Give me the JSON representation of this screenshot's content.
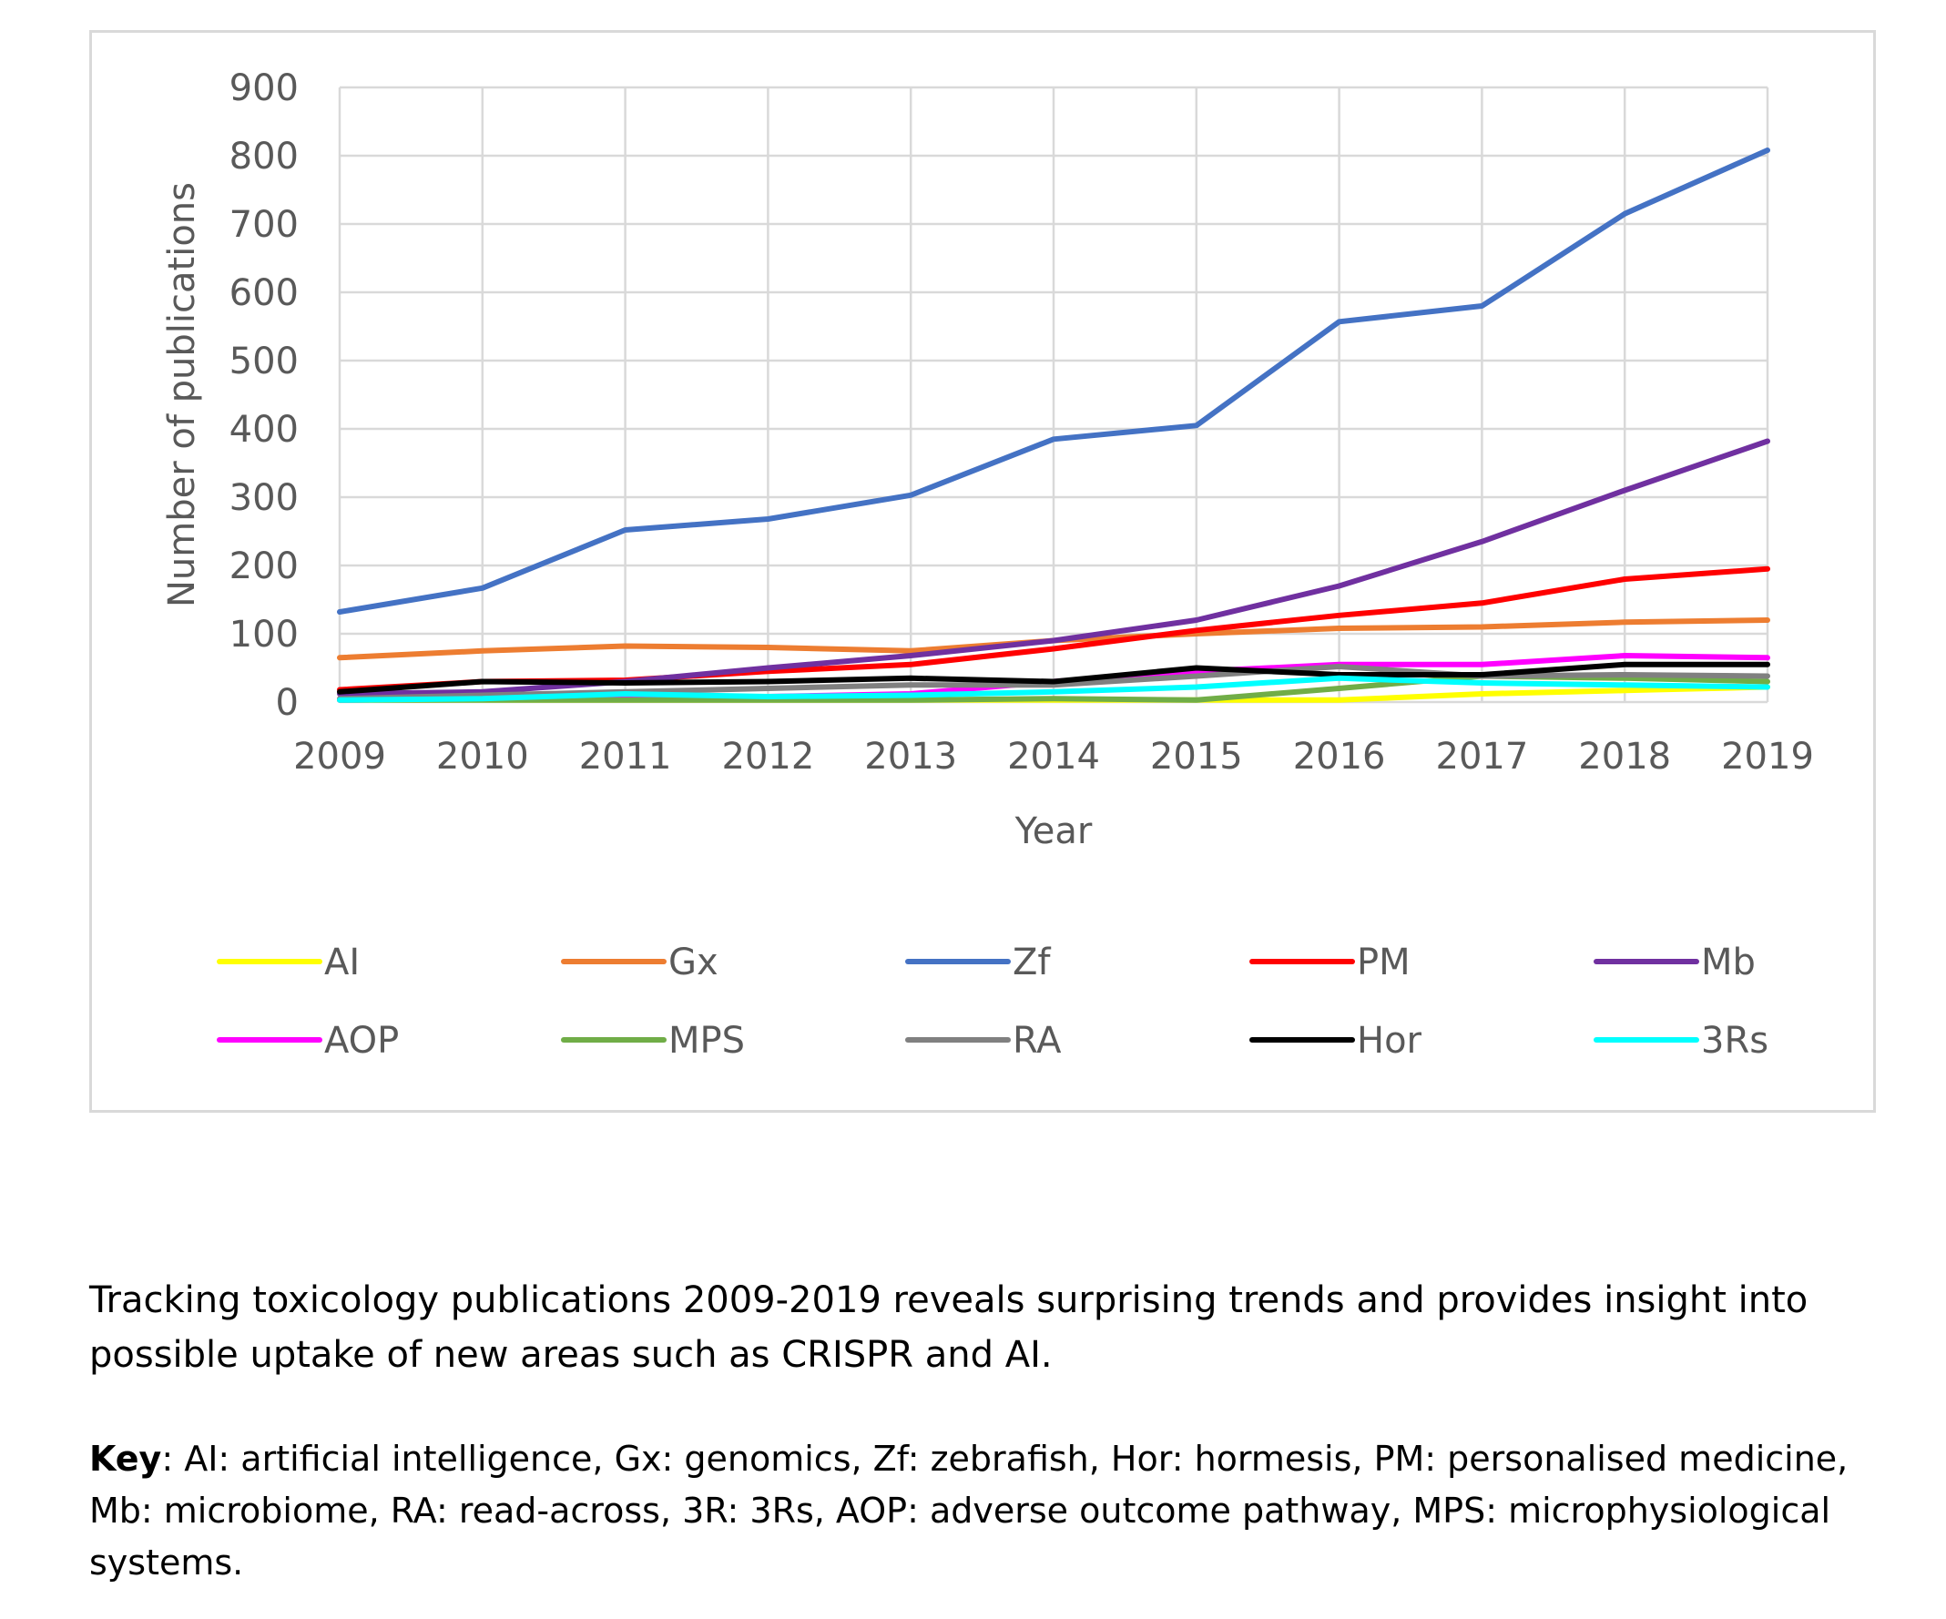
{
  "chart_data": {
    "type": "line",
    "x": [
      2009,
      2010,
      2011,
      2012,
      2013,
      2014,
      2015,
      2016,
      2017,
      2018,
      2019
    ],
    "xlabel": "Year",
    "ylabel": "Number of publications",
    "ylim": [
      0,
      900
    ],
    "yticks": [
      0,
      100,
      200,
      300,
      400,
      500,
      600,
      700,
      800,
      900
    ],
    "grid": true,
    "legend_position": "bottom",
    "series": [
      {
        "name": "AI",
        "color": "#ffff00",
        "values": [
          3,
          3,
          3,
          3,
          3,
          3,
          3,
          3,
          12,
          17,
          22
        ]
      },
      {
        "name": "Gx",
        "color": "#ed7d31",
        "values": [
          65,
          75,
          82,
          80,
          75,
          90,
          100,
          108,
          110,
          117,
          120
        ]
      },
      {
        "name": "Zf",
        "color": "#4472c4",
        "values": [
          132,
          167,
          252,
          268,
          303,
          385,
          405,
          557,
          580,
          715,
          808
        ]
      },
      {
        "name": "PM",
        "color": "#ff0000",
        "values": [
          18,
          30,
          32,
          45,
          55,
          78,
          105,
          127,
          145,
          180,
          195
        ]
      },
      {
        "name": "Mb",
        "color": "#7030a0",
        "values": [
          12,
          15,
          30,
          50,
          68,
          90,
          120,
          170,
          235,
          310,
          382
        ]
      },
      {
        "name": "AOP",
        "color": "#ff00ff",
        "values": [
          3,
          5,
          8,
          8,
          12,
          30,
          45,
          55,
          55,
          68,
          65
        ]
      },
      {
        "name": "MPS",
        "color": "#70ad47",
        "values": [
          3,
          3,
          3,
          3,
          3,
          5,
          3,
          20,
          38,
          35,
          30
        ]
      },
      {
        "name": "RA",
        "color": "#808080",
        "values": [
          5,
          10,
          15,
          20,
          25,
          25,
          38,
          52,
          38,
          40,
          38
        ]
      },
      {
        "name": "Hor",
        "color": "#000000",
        "values": [
          15,
          30,
          28,
          30,
          35,
          30,
          50,
          40,
          40,
          55,
          55
        ]
      },
      {
        "name": "3Rs",
        "color": "#00ffff",
        "values": [
          3,
          5,
          12,
          8,
          10,
          15,
          22,
          35,
          28,
          25,
          22
        ]
      }
    ]
  },
  "caption": {
    "main": "Tracking toxicology publications 2009-2019 reveals surprising trends and provides insight into possible uptake of new areas such as CRISPR and AI.",
    "key_label": "Key",
    "key_text": ": AI: artificial intelligence, Gx: genomics, Zf: zebrafish, Hor: hormesis, PM: personalised medicine, Mb: microbiome, RA: read-across, 3R: 3Rs, AOP: adverse outcome pathway, MPS: microphysiological systems."
  }
}
